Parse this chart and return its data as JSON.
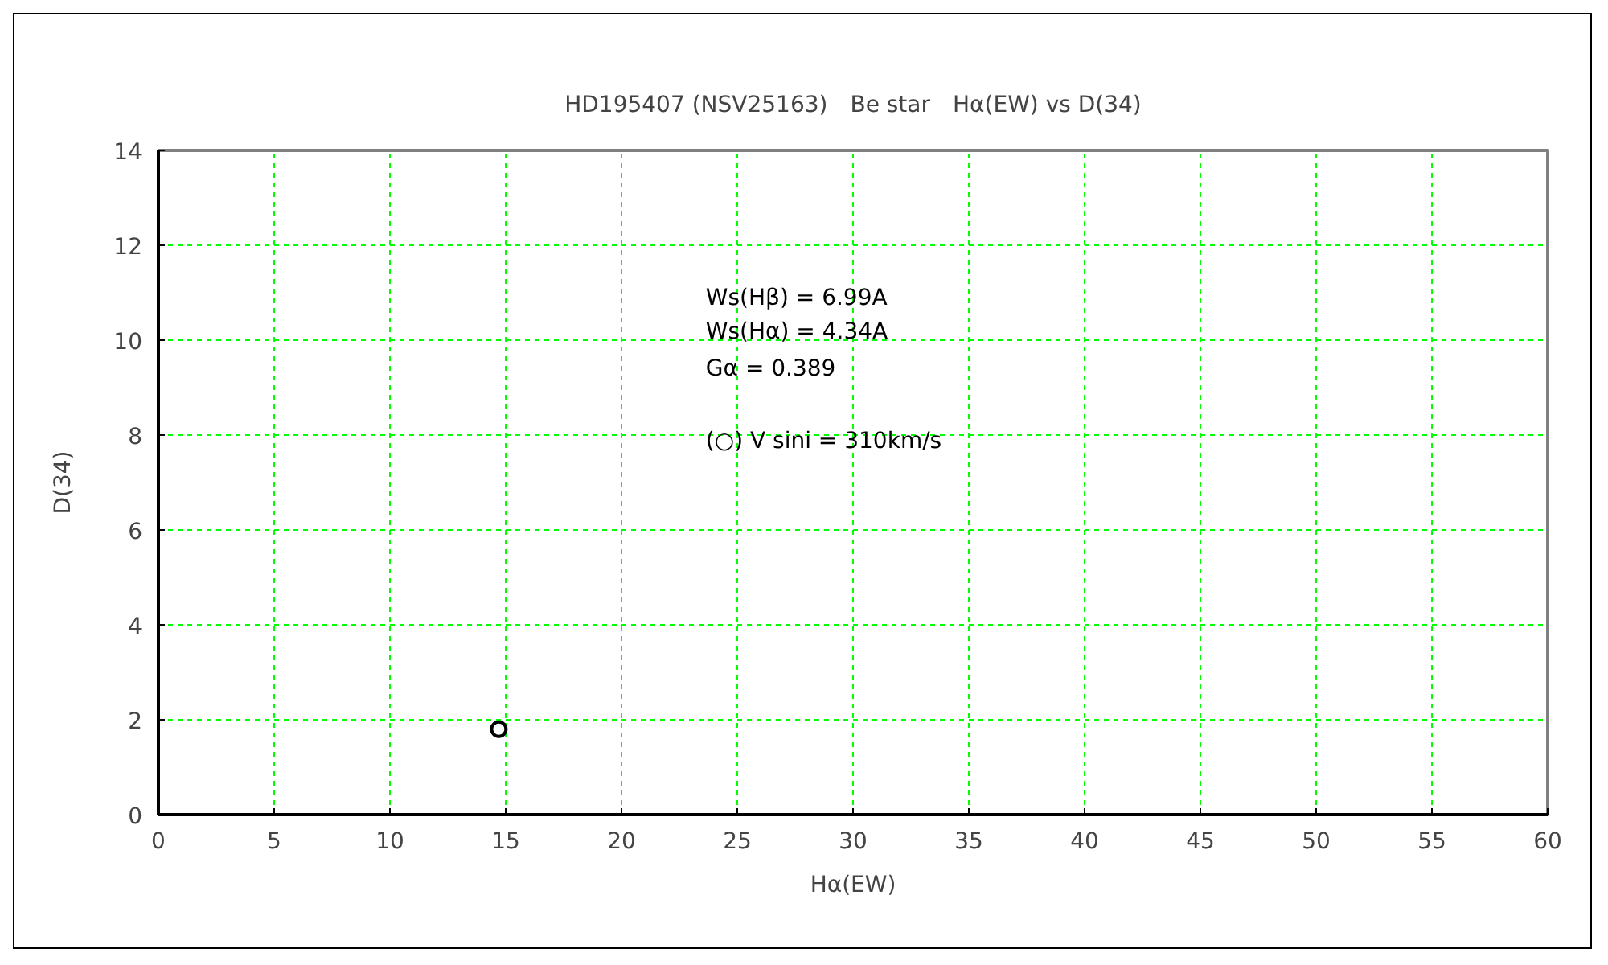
{
  "chart_data": {
    "type": "scatter",
    "title": "HD195407 (NSV25163)　Be star　Hα(EW) vs D(34)",
    "xlabel": "Hα(EW)",
    "ylabel": "D(34)",
    "x": [
      14.7
    ],
    "series": [
      {
        "color": "#000000",
        "values": [
          1.8
        ]
      }
    ],
    "xlim": [
      0,
      60
    ],
    "xticks": [
      0,
      5,
      10,
      15,
      20,
      25,
      30,
      35,
      40,
      45,
      50,
      55,
      60
    ],
    "ylim": [
      0,
      14
    ],
    "yticks": [
      0,
      2,
      4,
      6,
      8,
      10,
      12,
      14
    ],
    "grid": true,
    "marker": "circle",
    "annotations": [
      "Ws(Hβ) = 6.99A",
      "Ws(Hα) = 4.34A",
      "Gα = 0.389",
      "(○) V sini = 310km/s"
    ]
  }
}
